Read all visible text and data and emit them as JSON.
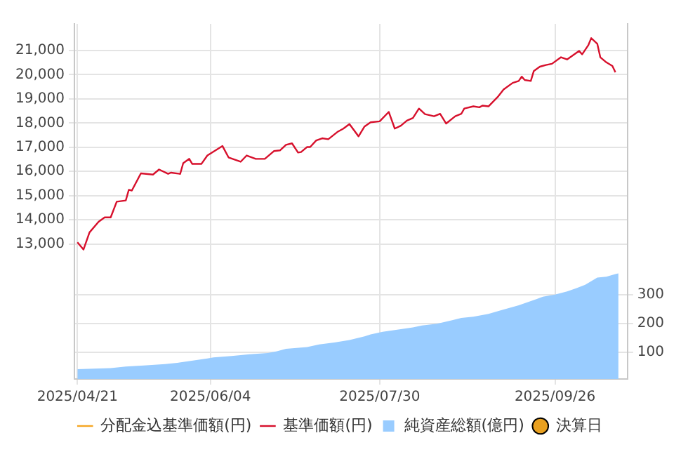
{
  "chart_data": {
    "type": "line",
    "xlim": [
      "2025-04-20",
      "2025-10-20"
    ],
    "xticks": [
      {
        "value": "2025-04-21",
        "label": "2025/04/21"
      },
      {
        "value": "2025-06-04",
        "label": "2025/06/04"
      },
      {
        "value": "2025-07-30",
        "label": "2025/07/30"
      },
      {
        "value": "2025-09-26",
        "label": "2025/09/26"
      }
    ],
    "ylim": [
      7420,
      22100
    ],
    "yticks": [
      {
        "value": 13000,
        "label": "13,000"
      },
      {
        "value": 14000,
        "label": "14,000"
      },
      {
        "value": 15000,
        "label": "15,000"
      },
      {
        "value": 16000,
        "label": "16,000"
      },
      {
        "value": 17000,
        "label": "17,000"
      },
      {
        "value": 18000,
        "label": "18,000"
      },
      {
        "value": 19000,
        "label": "19,000"
      },
      {
        "value": 20000,
        "label": "20,000"
      },
      {
        "value": 21000,
        "label": "21,000"
      }
    ],
    "y2lim": [
      7,
      1240
    ],
    "y2ticks": [
      100,
      200,
      300
    ],
    "grid": true,
    "legend": "bottom",
    "series": [
      {
        "name": "分配金込基準価額(円)",
        "color": "#f5a623"
      },
      {
        "name": "基準価額(円)",
        "color": "#d7102c",
        "x": [
          "2025-04-21",
          "2025-04-23",
          "2025-04-25",
          "2025-04-28",
          "2025-04-30",
          "2025-05-02",
          "2025-05-04",
          "2025-05-07",
          "2025-05-08",
          "2025-05-09",
          "2025-05-12",
          "2025-05-16",
          "2025-05-18",
          "2025-05-21",
          "2025-05-22",
          "2025-05-25",
          "2025-05-26",
          "2025-05-28",
          "2025-05-29",
          "2025-06-01",
          "2025-06-03",
          "2025-06-08",
          "2025-06-10",
          "2025-06-14",
          "2025-06-16",
          "2025-06-19",
          "2025-06-22",
          "2025-06-25",
          "2025-06-27",
          "2025-06-29",
          "2025-07-01",
          "2025-07-03",
          "2025-07-04",
          "2025-07-06",
          "2025-07-07",
          "2025-07-09",
          "2025-07-11",
          "2025-07-13",
          "2025-07-16",
          "2025-07-18",
          "2025-07-20",
          "2025-07-23",
          "2025-07-25",
          "2025-07-27",
          "2025-07-30",
          "2025-08-02",
          "2025-08-04",
          "2025-08-06",
          "2025-08-08",
          "2025-08-10",
          "2025-08-12",
          "2025-08-14",
          "2025-08-17",
          "2025-08-19",
          "2025-08-21",
          "2025-08-24",
          "2025-08-26",
          "2025-08-27",
          "2025-08-30",
          "2025-09-01",
          "2025-09-02",
          "2025-09-04",
          "2025-09-07",
          "2025-09-09",
          "2025-09-12",
          "2025-09-14",
          "2025-09-15",
          "2025-09-16",
          "2025-09-18",
          "2025-09-19",
          "2025-09-21",
          "2025-09-23",
          "2025-09-25",
          "2025-09-28",
          "2025-09-30",
          "2025-10-04",
          "2025-10-05",
          "2025-10-07",
          "2025-10-08",
          "2025-10-10",
          "2025-10-11",
          "2025-10-13",
          "2025-10-15",
          "2025-10-16"
        ],
        "values": [
          13070,
          12770,
          13480,
          13920,
          14100,
          14100,
          14750,
          14800,
          15240,
          15210,
          15920,
          15870,
          16080,
          15900,
          15950,
          15900,
          16340,
          16520,
          16310,
          16310,
          16660,
          17050,
          16580,
          16400,
          16660,
          16520,
          16520,
          16840,
          16870,
          17100,
          17160,
          16780,
          16800,
          17010,
          17010,
          17280,
          17370,
          17330,
          17630,
          17770,
          17960,
          17450,
          17860,
          18030,
          18070,
          18460,
          17770,
          17890,
          18100,
          18210,
          18600,
          18370,
          18280,
          18380,
          17980,
          18280,
          18380,
          18600,
          18690,
          18650,
          18720,
          18690,
          19070,
          19390,
          19660,
          19740,
          19920,
          19780,
          19740,
          20150,
          20330,
          20400,
          20450,
          20720,
          20630,
          20980,
          20840,
          21210,
          21510,
          21280,
          20720,
          20510,
          20360,
          20100
        ]
      },
      {
        "name": "純資産総額(億円)",
        "type": "area",
        "axis": "y2",
        "color": "#99ccff",
        "x": [
          "2025-04-21",
          "2025-05-02",
          "2025-05-07",
          "2025-05-13",
          "2025-05-20",
          "2025-05-24",
          "2025-05-28",
          "2025-06-03",
          "2025-06-05",
          "2025-06-11",
          "2025-06-17",
          "2025-06-23",
          "2025-06-26",
          "2025-06-29",
          "2025-07-06",
          "2025-07-10",
          "2025-07-15",
          "2025-07-20",
          "2025-07-25",
          "2025-07-27",
          "2025-07-31",
          "2025-08-04",
          "2025-08-10",
          "2025-08-13",
          "2025-08-18",
          "2025-08-23",
          "2025-08-26",
          "2025-08-30",
          "2025-09-04",
          "2025-09-08",
          "2025-09-14",
          "2025-09-19",
          "2025-09-22",
          "2025-09-26",
          "2025-09-30",
          "2025-10-03",
          "2025-10-06",
          "2025-10-10",
          "2025-10-13",
          "2025-10-16",
          "2025-10-17"
        ],
        "values": [
          41,
          45,
          50,
          54,
          59,
          63,
          69,
          78,
          82,
          87,
          93,
          97,
          103,
          112,
          118,
          127,
          134,
          142,
          155,
          162,
          171,
          177,
          186,
          193,
          199,
          211,
          219,
          223,
          233,
          245,
          263,
          281,
          293,
          300,
          311,
          322,
          334,
          359,
          362,
          371,
          374
        ]
      },
      {
        "name": "決算日",
        "type": "scatter",
        "color": "#e8a020"
      }
    ]
  }
}
